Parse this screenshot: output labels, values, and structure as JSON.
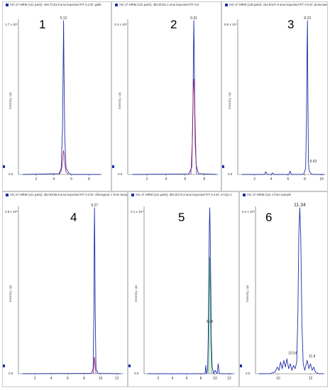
{
  "colors": {
    "signal": "#1f2fa8",
    "overlay": "#a0206a",
    "overlay_green": "#2e9e3e",
    "axis": "#555555"
  },
  "chart_data": [
    {
      "type": "line",
      "panel_number": "1",
      "title": "XIC of -MRM (141 pairs): 169.7/124.8 amu Expected RT: 5.2 ID: gallic",
      "y_max_label": "1.7 x 10⁵",
      "ylabel": "Intensity, cps",
      "x_ticks": [
        "2",
        "4",
        "6",
        "8"
      ],
      "xlim": [
        0,
        9.5
      ],
      "ylim": [
        0,
        1.0
      ],
      "annotations": [
        {
          "text": "5.12",
          "x": 5.12,
          "y": 1.0
        }
      ],
      "series": [
        {
          "role": "signal",
          "x": [
            0.5,
            4.6,
            4.85,
            5.0,
            5.08,
            5.12,
            5.16,
            5.25,
            5.4,
            5.7,
            6.0,
            9.3
          ],
          "values": [
            0.0,
            0.005,
            0.04,
            0.3,
            0.75,
            1.0,
            0.72,
            0.25,
            0.04,
            0.01,
            0.0,
            0.0
          ]
        },
        {
          "role": "overlay",
          "x": [
            4.6,
            4.85,
            5.0,
            5.08,
            5.12,
            5.16,
            5.25,
            5.4,
            5.7
          ],
          "values": [
            0.0,
            0.02,
            0.08,
            0.14,
            0.155,
            0.14,
            0.07,
            0.015,
            0.0
          ]
        }
      ]
    },
    {
      "type": "line",
      "panel_number": "2",
      "title": "XIC of -MRM (141 pairs): 353.0/191.1 amu Expected RT: 6.9",
      "y_max_label": "2.4 x 10⁵",
      "ylabel": "Intensity, cps",
      "x_ticks": [
        "2",
        "4",
        "6",
        "8"
      ],
      "xlim": [
        0,
        9.5
      ],
      "ylim": [
        0,
        1.0
      ],
      "annotations": [
        {
          "text": "6.91",
          "x": 6.91,
          "y": 1.0
        }
      ],
      "series": [
        {
          "role": "signal",
          "x": [
            0.5,
            6.4,
            6.7,
            6.82,
            6.88,
            6.91,
            6.95,
            7.02,
            7.15,
            7.4,
            9.3
          ],
          "values": [
            0.0,
            0.003,
            0.05,
            0.45,
            0.85,
            1.0,
            0.82,
            0.4,
            0.06,
            0.005,
            0.0
          ]
        },
        {
          "role": "overlay",
          "x": [
            6.6,
            6.78,
            6.85,
            6.91,
            6.97,
            7.05,
            7.2
          ],
          "values": [
            0.0,
            0.25,
            0.55,
            0.62,
            0.52,
            0.2,
            0.0
          ]
        }
      ]
    },
    {
      "type": "line",
      "panel_number": "3",
      "title": "XIC of -MRM (138 pairs): 152.9/107.8 amu Expected RT: 0.0 ID: protocatech",
      "y_max_label": "8.8 x 10⁴",
      "ylabel": "Intensity, cps",
      "x_ticks": [
        "2",
        "4",
        "6",
        "8",
        "10"
      ],
      "xlim": [
        0,
        10.5
      ],
      "ylim": [
        0,
        1.0
      ],
      "annotations": [
        {
          "text": "8.32",
          "x": 8.32,
          "y": 1.0
        },
        {
          "text": "8.43",
          "x": 8.43,
          "y": 0.07
        }
      ],
      "series": [
        {
          "role": "signal",
          "x": [
            0.5,
            3.2,
            3.35,
            3.5,
            4.0,
            4.15,
            4.3,
            6.1,
            6.25,
            6.4,
            7.6,
            7.9,
            8.1,
            8.2,
            8.28,
            8.32,
            8.36,
            8.43,
            8.5,
            8.7,
            9.0,
            10.3
          ],
          "values": [
            0.0,
            0.0,
            0.018,
            0.0,
            0.0,
            0.01,
            0.0,
            0.0,
            0.022,
            0.0,
            0.0,
            0.004,
            0.04,
            0.35,
            0.85,
            1.0,
            0.6,
            0.09,
            0.03,
            0.006,
            0.0,
            0.0
          ]
        }
      ]
    },
    {
      "type": "line",
      "panel_number": "4",
      "title": "XIC of -MRM (141 pairs): 352.9/190.8 amu Expected RT: 9.2 ID: chlorogenic 1 from Sample",
      "y_max_label": "2.9 x 10⁵",
      "ylabel": "Intensity, cps",
      "x_ticks": [
        "2",
        "4",
        "6",
        "8",
        "10",
        "12"
      ],
      "xlim": [
        0,
        12.8
      ],
      "ylim": [
        0,
        1.0
      ],
      "annotations": [
        {
          "text": "9.27",
          "x": 9.27,
          "y": 1.0
        }
      ],
      "series": [
        {
          "role": "signal",
          "x": [
            0.5,
            8.9,
            9.1,
            9.2,
            9.24,
            9.27,
            9.3,
            9.36,
            9.45,
            9.7,
            12.5
          ],
          "values": [
            0.0,
            0.002,
            0.03,
            0.4,
            0.85,
            1.0,
            0.82,
            0.35,
            0.03,
            0.002,
            0.0
          ]
        },
        {
          "role": "overlay",
          "x": [
            9.1,
            9.2,
            9.24,
            9.27,
            9.3,
            9.36,
            9.45
          ],
          "values": [
            0.0,
            0.05,
            0.09,
            0.1,
            0.085,
            0.04,
            0.0
          ]
        }
      ]
    },
    {
      "type": "line",
      "panel_number": "5",
      "title": "XIC of -MRM (141 pairs): 353.0/173.0 amu Expected RT: 9.4 ID: 4-CQA 1",
      "y_max_label": "2.1 x 10⁴",
      "ylabel": "Intensity, cps",
      "x_ticks": [
        "2",
        "4",
        "6",
        "8",
        "10",
        "12"
      ],
      "xlim": [
        0,
        12.8
      ],
      "ylim": [
        0,
        1.0
      ],
      "annotations": [
        {
          "text": "9.26",
          "x": 9.26,
          "y": 0.3
        }
      ],
      "series": [
        {
          "role": "signal",
          "x": [
            0.5,
            8.6,
            8.7,
            8.8,
            8.95,
            9.05,
            9.12,
            9.2,
            9.26,
            9.32,
            9.4,
            9.48,
            9.6,
            9.8,
            10.0,
            10.3,
            10.45,
            10.6,
            12.5
          ],
          "values": [
            0.0,
            0.0,
            0.05,
            0.0,
            0.02,
            0.25,
            0.6,
            0.9,
            1.0,
            0.85,
            0.55,
            0.2,
            0.04,
            0.0,
            0.02,
            0.0,
            0.06,
            0.0,
            0.0
          ]
        },
        {
          "role": "overlay_green",
          "x": [
            9.1,
            9.2,
            9.26,
            9.32,
            9.4,
            9.5
          ],
          "values": [
            0.0,
            0.45,
            0.7,
            0.5,
            0.2,
            0.0
          ]
        }
      ]
    },
    {
      "type": "line",
      "panel_number": "6",
      "title": "XIC of -MRM (141 1 from Sample",
      "y_max_label": "6.3 x 10⁴",
      "ylabel": "Intensity, cps",
      "x_ticks": [
        "10",
        "12"
      ],
      "xlim": [
        8.6,
        12.9
      ],
      "ylim": [
        0,
        1.0
      ],
      "annotations": [
        {
          "text": "11.34",
          "x": 11.34,
          "y": 1.0
        },
        {
          "text": "10.54",
          "x": 10.54,
          "y": 0.11
        },
        {
          "text": "11.8",
          "x": 11.8,
          "y": 0.09
        }
      ],
      "series": [
        {
          "role": "signal",
          "x": [
            8.8,
            9.2,
            9.5,
            9.8,
            9.95,
            10.05,
            10.15,
            10.25,
            10.35,
            10.45,
            10.54,
            10.65,
            10.75,
            10.85,
            10.95,
            11.05,
            11.15,
            11.22,
            11.28,
            11.34,
            11.4,
            11.47,
            11.55,
            11.65,
            11.72,
            11.8,
            11.9,
            12.0,
            12.1,
            12.2,
            12.3,
            12.5,
            12.8
          ],
          "values": [
            0.0,
            0.0,
            0.0,
            0.01,
            0.04,
            0.02,
            0.07,
            0.03,
            0.08,
            0.04,
            0.09,
            0.03,
            0.06,
            0.02,
            0.05,
            0.03,
            0.07,
            0.35,
            0.85,
            1.0,
            0.82,
            0.3,
            0.06,
            0.02,
            0.05,
            0.08,
            0.03,
            0.06,
            0.02,
            0.04,
            0.01,
            0.0,
            0.0
          ]
        }
      ]
    }
  ]
}
